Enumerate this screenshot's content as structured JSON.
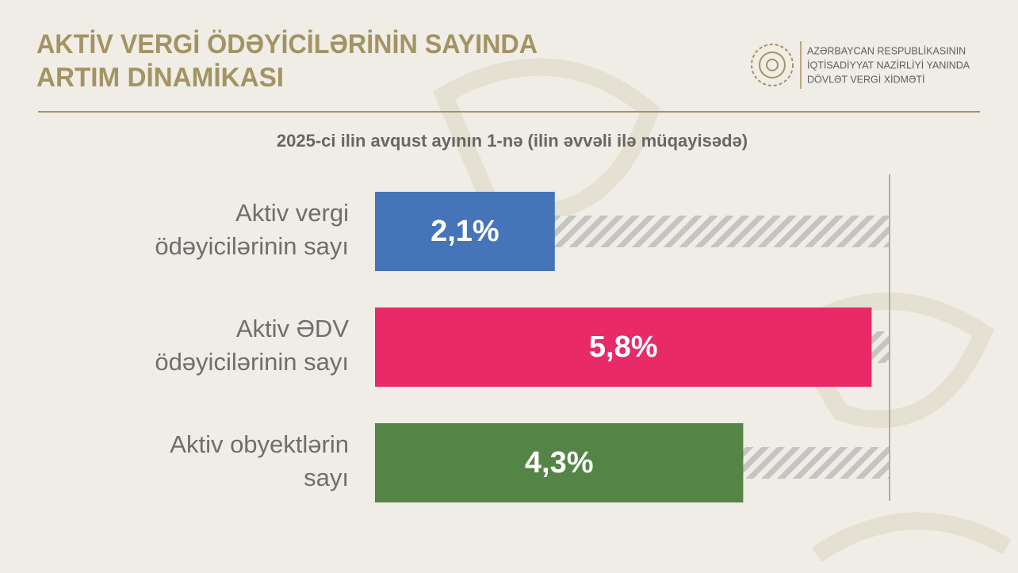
{
  "chart_data": {
    "type": "hbar",
    "title": [
      "AKTİV VERGİ ÖDƏYİCİLƏRİNİN SAYINDA",
      "ARTIM DİNAMİKASI"
    ],
    "organization": [
      "AZƏRBAYCAN RESPUBLİKASININ",
      "İQTİSADİYYAT NAZİRLİYİ YANINDA",
      "DÖVLƏT VERGİ XİDMƏTİ"
    ],
    "subtitle": "2025-ci ilin avqust ayının 1-nə (ilin əvvəli ilə müqayisədə)",
    "categories": [
      [
        "Aktiv vergi",
        "ödəyicilərinin sayı"
      ],
      [
        "Aktiv ƏDV",
        "ödəyicilərinin sayı"
      ],
      [
        "Aktiv obyektlərin",
        "sayı"
      ]
    ],
    "values": [
      2.1,
      5.8,
      4.3
    ],
    "value_labels": [
      "2,1%",
      "5,8%",
      "4,3%"
    ],
    "colors": [
      "#4674b9",
      "#e92a68",
      "#548546"
    ],
    "xlim": [
      0,
      6
    ]
  }
}
